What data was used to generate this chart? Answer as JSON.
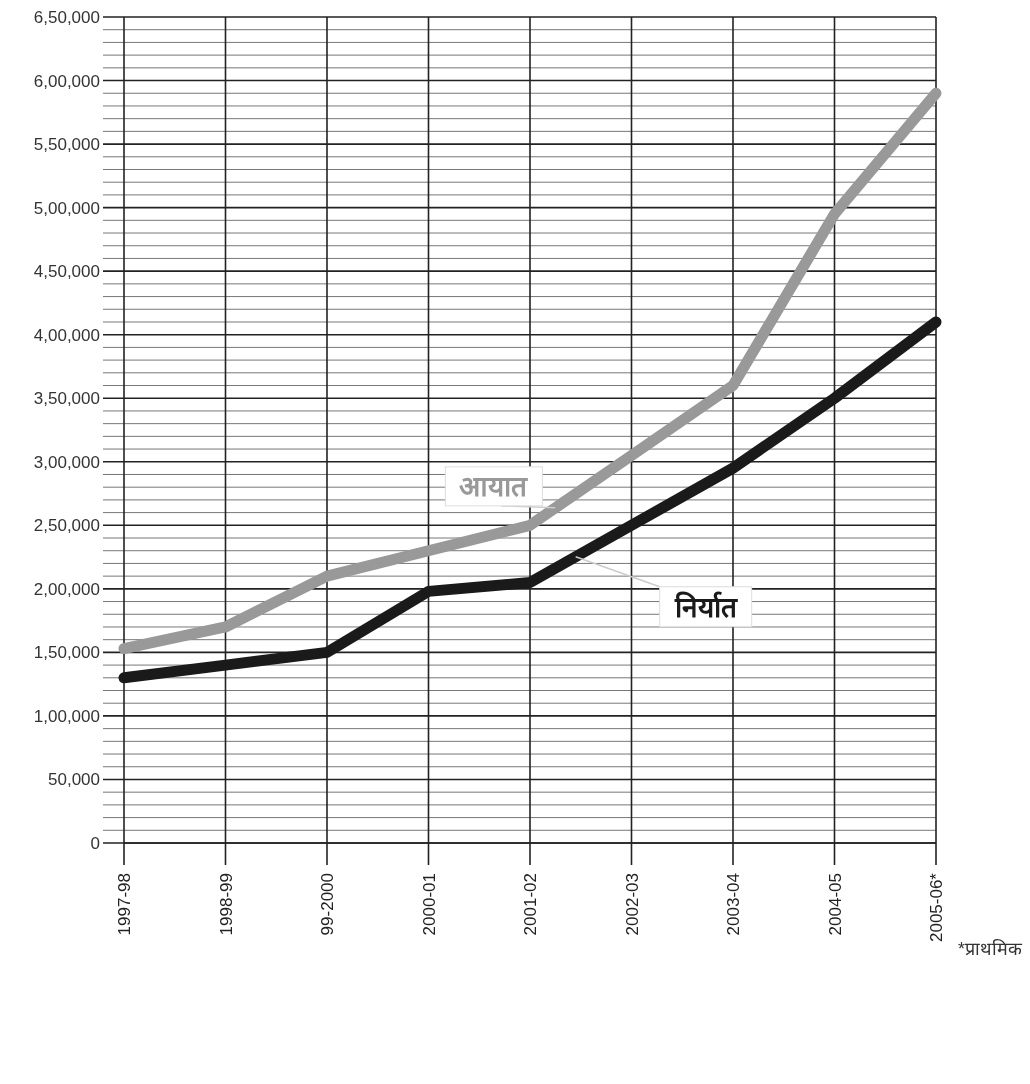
{
  "chart_data": {
    "type": "line",
    "categories": [
      "1997-98",
      "1998-99",
      "99-2000",
      "2000-01",
      "2001-02",
      "2002-03",
      "2003-04",
      "2004-05",
      "2005-06*"
    ],
    "series": [
      {
        "name": "आयात",
        "color": "#999999",
        "values": [
          153000,
          170000,
          210000,
          230000,
          250000,
          305000,
          360000,
          495000,
          590000
        ]
      },
      {
        "name": "निर्यात",
        "color": "#1a1a1a",
        "values": [
          130000,
          140000,
          150000,
          198000,
          205000,
          250000,
          295000,
          350000,
          410000
        ]
      }
    ],
    "ylim": [
      0,
      650000
    ],
    "yticks": [
      0,
      {
        "value": 10000,
        "label": null
      },
      {
        "value": 20000,
        "label": null
      },
      {
        "value": 30000,
        "label": null
      },
      {
        "value": 40000,
        "label": null
      },
      {
        "value": 50000,
        "label": "50,000"
      },
      {
        "value": 60000,
        "label": null
      },
      {
        "value": 70000,
        "label": null
      },
      {
        "value": 80000,
        "label": null
      },
      {
        "value": 90000,
        "label": null
      },
      {
        "value": 100000,
        "label": "1,00,000"
      },
      {
        "value": 110000,
        "label": null
      },
      {
        "value": 120000,
        "label": null
      },
      {
        "value": 130000,
        "label": null
      },
      {
        "value": 140000,
        "label": null
      },
      {
        "value": 150000,
        "label": "1,50,000"
      },
      {
        "value": 160000,
        "label": null
      },
      {
        "value": 170000,
        "label": null
      },
      {
        "value": 180000,
        "label": null
      },
      {
        "value": 190000,
        "label": null
      },
      {
        "value": 200000,
        "label": "2,00,000"
      },
      {
        "value": 210000,
        "label": null
      },
      {
        "value": 220000,
        "label": null
      },
      {
        "value": 230000,
        "label": null
      },
      {
        "value": 240000,
        "label": null
      },
      {
        "value": 250000,
        "label": "2,50,000"
      },
      {
        "value": 260000,
        "label": null
      },
      {
        "value": 270000,
        "label": null
      },
      {
        "value": 280000,
        "label": null
      },
      {
        "value": 290000,
        "label": null
      },
      {
        "value": 300000,
        "label": "3,00,000"
      },
      {
        "value": 310000,
        "label": null
      },
      {
        "value": 320000,
        "label": null
      },
      {
        "value": 330000,
        "label": null
      },
      {
        "value": 340000,
        "label": null
      },
      {
        "value": 350000,
        "label": "3,50,000"
      },
      {
        "value": 360000,
        "label": null
      },
      {
        "value": 370000,
        "label": null
      },
      {
        "value": 380000,
        "label": null
      },
      {
        "value": 390000,
        "label": null
      },
      {
        "value": 400000,
        "label": "4,00,000"
      },
      {
        "value": 410000,
        "label": null
      },
      {
        "value": 420000,
        "label": null
      },
      {
        "value": 430000,
        "label": null
      },
      {
        "value": 440000,
        "label": null
      },
      {
        "value": 450000,
        "label": "4,50,000"
      },
      {
        "value": 460000,
        "label": null
      },
      {
        "value": 470000,
        "label": null
      },
      {
        "value": 480000,
        "label": null
      },
      {
        "value": 490000,
        "label": null
      },
      {
        "value": 500000,
        "label": "5,00,000"
      },
      {
        "value": 510000,
        "label": null
      },
      {
        "value": 520000,
        "label": null
      },
      {
        "value": 530000,
        "label": null
      },
      {
        "value": 540000,
        "label": null
      },
      {
        "value": 550000,
        "label": "5,50,000"
      },
      {
        "value": 560000,
        "label": null
      },
      {
        "value": 570000,
        "label": null
      },
      {
        "value": 580000,
        "label": null
      },
      {
        "value": 590000,
        "label": null
      },
      {
        "value": 600000,
        "label": "6,00,000"
      },
      {
        "value": 610000,
        "label": null
      },
      {
        "value": 620000,
        "label": null
      },
      {
        "value": 630000,
        "label": null
      },
      {
        "value": 640000,
        "label": null
      },
      {
        "value": 650000,
        "label": "6,50,000"
      }
    ],
    "grid": true,
    "marker": "none",
    "line_style": "solid",
    "annotations": [
      "*प्राथमिक"
    ]
  }
}
